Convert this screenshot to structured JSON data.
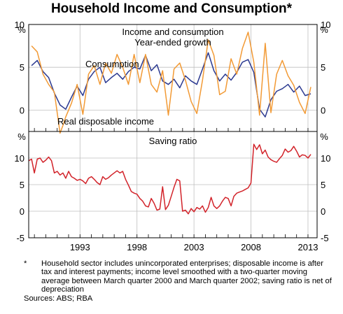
{
  "title": "Household Income and Consumption*",
  "chart_data": [
    {
      "type": "line",
      "title": "Income and consumption",
      "subtitle": "Year-ended growth",
      "ylabel_left": "%",
      "ylabel_right": "%",
      "ylim": [
        -2.5,
        10
      ],
      "yticks_left": [
        "10",
        "5",
        "0"
      ],
      "yticks_right": [
        "10",
        "5",
        "0"
      ],
      "ytick_values": [
        10,
        5,
        0
      ],
      "xlim": [
        1988.5,
        2013.8
      ],
      "grid": true,
      "series": [
        {
          "name": "Consumption",
          "color": "#2b3990",
          "x": [
            1988.75,
            1989.25,
            1989.75,
            1990.25,
            1990.75,
            1991.25,
            1991.75,
            1992.25,
            1992.75,
            1993.25,
            1993.75,
            1994.25,
            1994.75,
            1995.25,
            1995.75,
            1996.25,
            1996.75,
            1997.25,
            1997.75,
            1998.25,
            1998.75,
            1999.25,
            1999.75,
            2000.25,
            2000.75,
            2001.25,
            2001.75,
            2002.25,
            2002.75,
            2003.25,
            2003.75,
            2004.25,
            2004.75,
            2005.25,
            2005.75,
            2006.25,
            2006.75,
            2007.25,
            2007.75,
            2008.25,
            2008.75,
            2009.25,
            2009.75,
            2010.25,
            2010.75,
            2011.25,
            2011.75,
            2012.25,
            2012.75,
            2013.25
          ],
          "values": [
            5.2,
            5.8,
            4.5,
            3.8,
            2.0,
            0.6,
            0.1,
            1.5,
            2.8,
            1.7,
            3.6,
            4.5,
            5.0,
            3.2,
            3.8,
            4.3,
            3.6,
            4.5,
            5.0,
            4.8,
            6.4,
            4.6,
            5.3,
            3.4,
            3.0,
            3.6,
            2.6,
            4.0,
            3.4,
            3.0,
            4.8,
            6.7,
            4.6,
            3.4,
            4.2,
            3.5,
            4.4,
            5.6,
            5.9,
            4.4,
            0.1,
            -0.8,
            1.2,
            2.2,
            2.5,
            3.0,
            2.1,
            2.8,
            1.7,
            1.9
          ]
        },
        {
          "name": "Real disposable income",
          "color": "#f29a35",
          "x": [
            1988.75,
            1989.25,
            1989.75,
            1990.25,
            1990.75,
            1991.25,
            1991.5,
            1991.75,
            1992.25,
            1992.75,
            1993.25,
            1993.75,
            1994.25,
            1994.75,
            1995.25,
            1995.75,
            1996.25,
            1996.75,
            1997.25,
            1997.75,
            1998.25,
            1998.75,
            1999.25,
            1999.75,
            2000.25,
            2000.75,
            2001.25,
            2001.75,
            2002.25,
            2002.75,
            2003.25,
            2003.75,
            2004.25,
            2004.75,
            2005.25,
            2005.75,
            2006.25,
            2006.75,
            2007.25,
            2007.75,
            2008.25,
            2008.75,
            2009.25,
            2009.75,
            2010.25,
            2010.75,
            2011.25,
            2011.75,
            2012.25,
            2012.75,
            2013.25
          ],
          "values": [
            7.5,
            6.8,
            4.2,
            3.0,
            2.1,
            -2.7,
            -1.8,
            -0.8,
            0.8,
            3.0,
            -0.5,
            4.2,
            5.2,
            3.0,
            5.5,
            4.3,
            6.5,
            5.0,
            3.0,
            6.5,
            3.2,
            6.5,
            3.0,
            2.1,
            4.6,
            -0.6,
            4.8,
            5.5,
            3.5,
            1.0,
            -0.4,
            3.5,
            8.2,
            6.4,
            1.8,
            2.2,
            6.0,
            4.2,
            7.2,
            9.1,
            5.6,
            -0.6,
            7.8,
            -0.3,
            4.2,
            5.8,
            4.0,
            2.9,
            0.9,
            -0.4,
            2.7
          ]
        }
      ]
    },
    {
      "type": "line",
      "title": "Saving ratio",
      "ylabel_left": "%",
      "ylabel_right": "%",
      "ylim": [
        -5,
        15
      ],
      "yticks_left": [
        "10",
        "5",
        "0",
        "-5"
      ],
      "yticks_right": [
        "10",
        "5",
        "0",
        "-5"
      ],
      "ytick_values": [
        10,
        5,
        0,
        -5
      ],
      "xlim": [
        1988.5,
        2013.8
      ],
      "xticks": [
        "1993",
        "1998",
        "2003",
        "2008",
        "2013"
      ],
      "xtick_values": [
        1993,
        1998,
        2003,
        2008,
        2013
      ],
      "grid": true,
      "series": [
        {
          "name": "",
          "color": "#d2232a",
          "x": [
            1988.5,
            1988.75,
            1989.0,
            1989.25,
            1989.5,
            1989.75,
            1990.0,
            1990.25,
            1990.5,
            1990.75,
            1991.0,
            1991.25,
            1991.5,
            1991.75,
            1992.0,
            1992.25,
            1992.5,
            1992.75,
            1993.0,
            1993.25,
            1993.5,
            1993.75,
            1994.0,
            1994.25,
            1994.5,
            1994.75,
            1995.0,
            1995.25,
            1995.5,
            1995.75,
            1996.0,
            1996.25,
            1996.5,
            1996.75,
            1997.0,
            1997.25,
            1997.5,
            1997.75,
            1998.0,
            1998.25,
            1998.5,
            1998.75,
            1999.0,
            1999.25,
            1999.5,
            1999.75,
            2000.0,
            2000.25,
            2000.5,
            2000.75,
            2001.0,
            2001.25,
            2001.5,
            2001.75,
            2002.0,
            2002.25,
            2002.5,
            2002.75,
            2003.0,
            2003.25,
            2003.5,
            2003.75,
            2004.0,
            2004.25,
            2004.5,
            2004.75,
            2005.0,
            2005.25,
            2005.5,
            2005.75,
            2006.0,
            2006.25,
            2006.5,
            2006.75,
            2007.0,
            2007.25,
            2007.5,
            2007.75,
            2008.0,
            2008.25,
            2008.5,
            2008.75,
            2009.0,
            2009.25,
            2009.5,
            2009.75,
            2010.0,
            2010.25,
            2010.5,
            2010.75,
            2011.0,
            2011.25,
            2011.5,
            2011.75,
            2012.0,
            2012.25,
            2012.5,
            2012.75,
            2013.0,
            2013.25
          ],
          "values": [
            9.5,
            9.8,
            7.2,
            9.8,
            10.0,
            9.2,
            9.6,
            10.2,
            9.5,
            7.2,
            7.5,
            6.8,
            7.2,
            6.2,
            7.5,
            6.5,
            6.2,
            5.8,
            6.0,
            5.7,
            5.2,
            6.2,
            6.5,
            6.0,
            5.4,
            5.0,
            6.5,
            6.0,
            6.3,
            6.8,
            7.2,
            7.6,
            7.2,
            7.5,
            6.0,
            4.9,
            3.7,
            3.4,
            3.2,
            2.4,
            1.9,
            1.0,
            0.8,
            2.4,
            1.5,
            0.2,
            0.4,
            4.6,
            0.3,
            1.1,
            2.8,
            4.5,
            6.0,
            5.7,
            0.0,
            0.2,
            -0.5,
            0.5,
            -0.1,
            0.7,
            0.4,
            1.0,
            -0.2,
            0.7,
            2.6,
            1.0,
            0.5,
            1.0,
            1.9,
            2.6,
            2.4,
            1.0,
            2.8,
            3.4,
            3.6,
            3.8,
            4.1,
            4.4,
            5.3,
            12.6,
            11.6,
            12.5,
            10.8,
            11.5,
            10.2,
            9.7,
            9.4,
            9.2,
            9.9,
            10.5,
            11.7,
            11.1,
            11.4,
            12.2,
            11.3,
            10.2,
            10.6,
            10.5,
            10.0,
            10.7
          ]
        }
      ]
    }
  ],
  "panel_labels": {
    "consumption": "Consumption",
    "income": "Real disposable income"
  },
  "footnote": {
    "mark": "*",
    "text": "Household sector includes unincorporated enterprises; disposable income is after tax and interest payments; income level smoothed with a two-quarter moving average between March quarter 2000 and March quarter 2002; saving ratio is net of depreciation",
    "sources": "Sources: ABS; RBA"
  }
}
